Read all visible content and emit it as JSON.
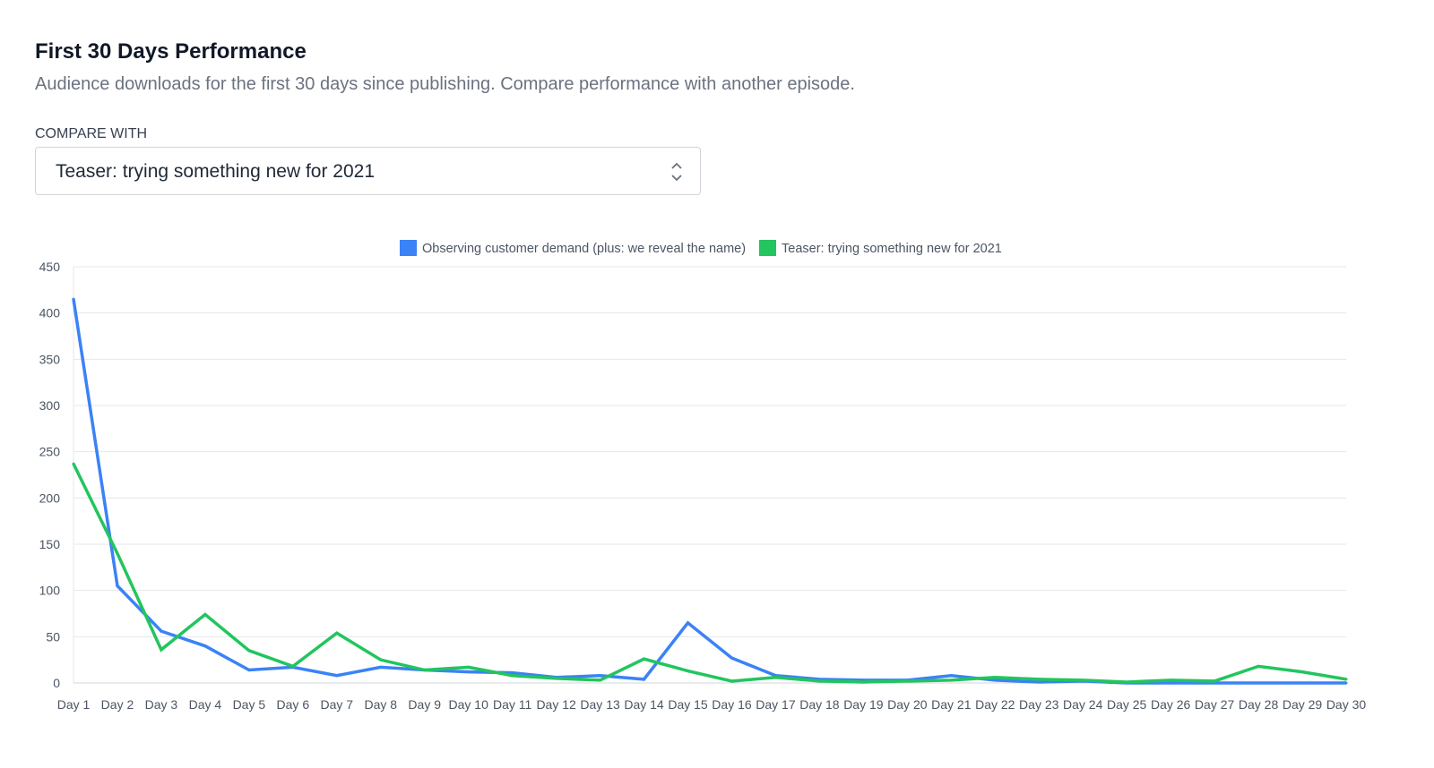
{
  "header": {
    "title": "First 30 Days Performance",
    "subtitle": "Audience downloads for the first 30 days since publishing. Compare performance with another episode."
  },
  "compare": {
    "label": "COMPARE WITH",
    "selected": "Teaser: trying something new for 2021",
    "icon": "chevron-up-down-icon"
  },
  "chart_data": {
    "type": "line",
    "title": "",
    "xlabel": "",
    "ylabel": "",
    "ylim": [
      0,
      450
    ],
    "yticks": [
      0,
      50,
      100,
      150,
      200,
      250,
      300,
      350,
      400,
      450
    ],
    "grid": true,
    "legend": "top",
    "categories": [
      "Day 1",
      "Day 2",
      "Day 3",
      "Day 4",
      "Day 5",
      "Day 6",
      "Day 7",
      "Day 8",
      "Day 9",
      "Day 10",
      "Day 11",
      "Day 12",
      "Day 13",
      "Day 14",
      "Day 15",
      "Day 16",
      "Day 17",
      "Day 18",
      "Day 19",
      "Day 20",
      "Day 21",
      "Day 22",
      "Day 23",
      "Day 24",
      "Day 25",
      "Day 26",
      "Day 27",
      "Day 28",
      "Day 29",
      "Day 30"
    ],
    "series": [
      {
        "name": "Observing customer demand (plus: we reveal the name)",
        "color": "#3b82f6",
        "values": [
          415,
          105,
          56,
          40,
          14,
          17,
          8,
          17,
          14,
          12,
          11,
          6,
          8,
          4,
          65,
          27,
          8,
          4,
          3,
          3,
          8,
          3,
          1,
          2,
          0,
          0,
          0,
          0,
          0,
          0
        ]
      },
      {
        "name": "Teaser: trying something new for 2021",
        "color": "#22c55e",
        "values": [
          237,
          140,
          36,
          74,
          35,
          18,
          54,
          25,
          14,
          17,
          8,
          5,
          3,
          26,
          13,
          2,
          6,
          2,
          1,
          2,
          3,
          6,
          4,
          3,
          1,
          3,
          2,
          18,
          12,
          4
        ]
      }
    ]
  }
}
